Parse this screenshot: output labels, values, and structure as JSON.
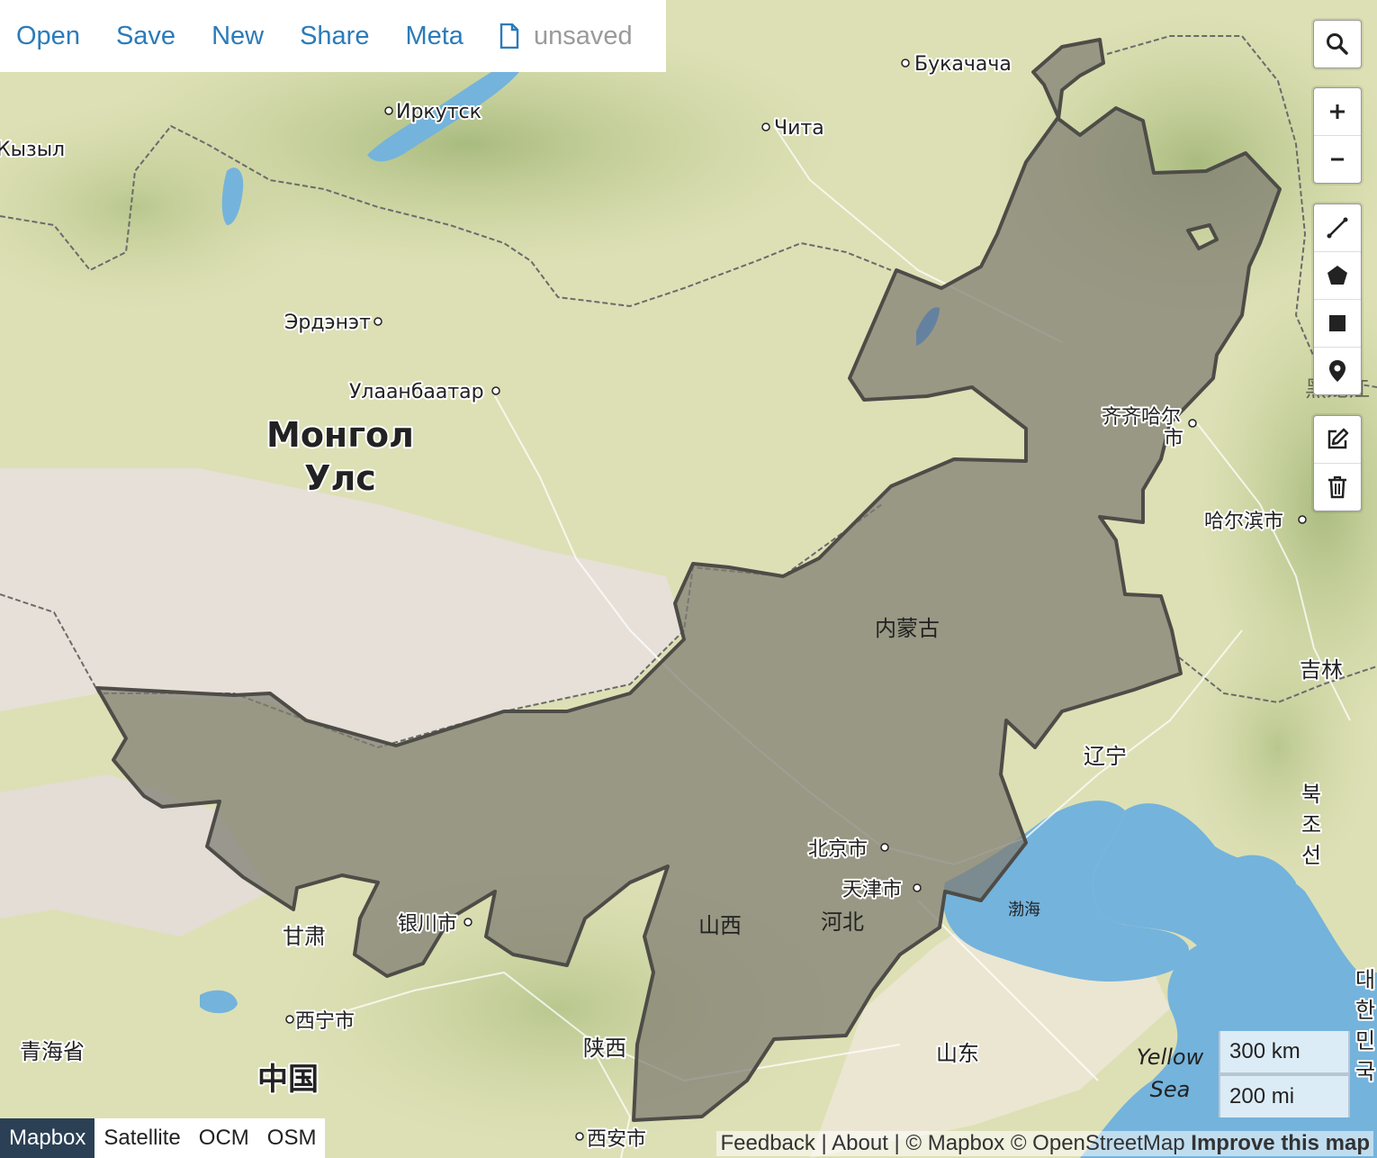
{
  "toolbar": {
    "open": "Open",
    "save": "Save",
    "new": "New",
    "share": "Share",
    "meta": "Meta",
    "status": "unsaved"
  },
  "map_controls": {
    "search": "search-icon",
    "zoom_in": "plus-icon",
    "zoom_out": "minus-icon",
    "draw_tools": [
      "line-icon",
      "polygon-icon",
      "rectangle-icon",
      "marker-icon"
    ],
    "edit_tools": [
      "edit-icon",
      "trash-icon"
    ]
  },
  "layers": {
    "items": [
      "Mapbox",
      "Satellite",
      "OCM",
      "OSM"
    ],
    "active": "Mapbox"
  },
  "scale": {
    "km": "300 km",
    "mi": "200 mi"
  },
  "attribution": {
    "feedback": "Feedback",
    "sep1": " | ",
    "about": "About",
    "sep2": " | © Mapbox © OpenStreetMap ",
    "improve": "Improve this map"
  },
  "labels": {
    "bukachacha": "Букачача",
    "irkutsk": "Иркутск",
    "chita": "Чита",
    "kyzyl": "Кызыл",
    "erdenet": "Эрдэнэт",
    "ulaanbaatar": "Улаанбаатар",
    "mongol_1": "Монгол",
    "mongol_2": "Улс",
    "qiqihar_1": "齐齐哈尔",
    "qiqihar_2": "市",
    "harbin": "哈尔滨市",
    "heilongjiang": "黑龙江",
    "jilin": "吉林",
    "inner_mongolia": "内蒙古",
    "liaoning": "辽宁",
    "beijing": "北京市",
    "tianjin": "天津市",
    "bohai": "渤海",
    "shanxi": "山西",
    "hebei": "河北",
    "yinchuan": "银川市",
    "gansu": "甘肃",
    "xining": "西宁市",
    "qinghai": "青海省",
    "china": "中国",
    "shaanxi": "陕西",
    "shandong": "山东",
    "xian": "西安市",
    "yellow_sea_1": "Yellow",
    "yellow_sea_2": "Sea",
    "nk_1": "북",
    "nk_2": "조",
    "nk_3": "선",
    "sk_1": "대",
    "sk_2": "한",
    "sk_3": "민",
    "sk_4": "국"
  },
  "colors": {
    "accent": "#2b7bb9",
    "polygon_fill": "#7e7b72",
    "polygon_stroke": "#4e4c47",
    "water": "#74b3dc",
    "active_layer": "#2b4054"
  }
}
